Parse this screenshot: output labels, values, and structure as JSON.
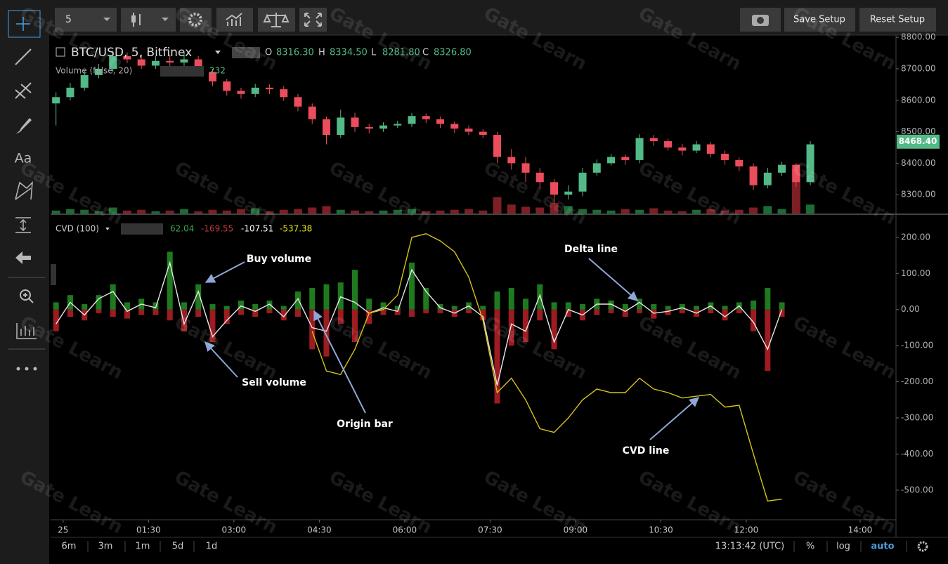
{
  "toolbar": {
    "interval": "5",
    "save": "Save Setup",
    "reset": "Reset Setup",
    "text_tool": "Aa"
  },
  "bottom_bar": {
    "ranges": [
      "6m",
      "3m",
      "1m",
      "5d",
      "1d"
    ],
    "clock": "13:13:42 (UTC)",
    "percent": "%",
    "log": "log",
    "auto": "auto"
  },
  "watermark": "Gate Learn",
  "chart_data": [
    {
      "type": "candlestick",
      "title": "BTC/USD, 5, Bitfinex",
      "ohlc_legend": [
        {
          "label": "O",
          "value": "8316.30"
        },
        {
          "label": "H",
          "value": "8334.50"
        },
        {
          "label": "L",
          "value": "8281.80"
        },
        {
          "label": "C",
          "value": "8326.80"
        }
      ],
      "volume_legend": {
        "label": "Volume (false, 20)",
        "value": "232"
      },
      "x": [
        -0.125,
        0.125,
        0.375,
        0.625,
        0.875,
        1.125,
        1.375,
        1.625,
        1.875,
        2.125,
        2.375,
        2.625,
        2.875,
        3.125,
        3.375,
        3.625,
        3.875,
        4.125,
        4.375,
        4.625,
        4.875,
        5.125,
        5.375,
        5.625,
        5.875,
        6.125,
        6.375,
        6.625,
        6.875,
        7.125,
        7.375,
        7.625,
        7.875,
        8.125,
        8.375,
        8.625,
        8.875,
        9.125,
        9.375,
        9.625,
        9.875,
        10.125,
        10.375,
        10.625,
        10.875,
        11.125,
        11.375,
        11.625,
        11.875,
        12.125,
        12.375,
        12.625,
        12.875,
        13.125
      ],
      "open": [
        8590,
        8610,
        8640,
        8680,
        8700,
        8740,
        8730,
        8710,
        8725,
        8720,
        8730,
        8690,
        8660,
        8630,
        8620,
        8640,
        8635,
        8610,
        8580,
        8540,
        8490,
        8545,
        8515,
        8510,
        8520,
        8525,
        8550,
        8540,
        8525,
        8510,
        8500,
        8490,
        8420,
        8400,
        8370,
        8340,
        8300,
        8310,
        8370,
        8400,
        8420,
        8410,
        8480,
        8470,
        8450,
        8440,
        8460,
        8430,
        8410,
        8390,
        8330,
        8370,
        8395,
        8340
      ],
      "high": [
        8625,
        8655,
        8695,
        8715,
        8758,
        8752,
        8745,
        8740,
        8745,
        8750,
        8740,
        8700,
        8668,
        8640,
        8652,
        8650,
        8645,
        8620,
        8590,
        8548,
        8570,
        8560,
        8525,
        8530,
        8535,
        8560,
        8558,
        8548,
        8532,
        8520,
        8508,
        8500,
        8445,
        8420,
        8385,
        8350,
        8330,
        8385,
        8412,
        8430,
        8428,
        8492,
        8490,
        8478,
        8462,
        8470,
        8468,
        8440,
        8418,
        8400,
        8385,
        8405,
        8400,
        8470
      ],
      "low": [
        8520,
        8600,
        8630,
        8670,
        8690,
        8718,
        8700,
        8700,
        8705,
        8708,
        8676,
        8645,
        8615,
        8605,
        8610,
        8620,
        8598,
        8565,
        8525,
        8460,
        8480,
        8500,
        8495,
        8500,
        8512,
        8515,
        8528,
        8512,
        8496,
        8490,
        8480,
        8400,
        8380,
        8340,
        8320,
        8270,
        8285,
        8295,
        8360,
        8392,
        8395,
        8400,
        8455,
        8440,
        8425,
        8432,
        8418,
        8395,
        8375,
        8315,
        8320,
        8360,
        8325,
        8330
      ],
      "close": [
        8610,
        8640,
        8680,
        8700,
        8740,
        8730,
        8710,
        8725,
        8720,
        8730,
        8690,
        8660,
        8630,
        8620,
        8640,
        8635,
        8610,
        8580,
        8540,
        8490,
        8545,
        8515,
        8510,
        8520,
        8525,
        8550,
        8540,
        8525,
        8510,
        8500,
        8490,
        8420,
        8400,
        8370,
        8340,
        8300,
        8310,
        8370,
        8400,
        8420,
        8410,
        8480,
        8470,
        8450,
        8440,
        8460,
        8430,
        8410,
        8390,
        8330,
        8370,
        8395,
        8340,
        8460
      ],
      "volume": [
        4,
        6,
        5,
        3,
        8,
        4,
        5,
        3,
        4,
        6,
        3,
        5,
        4,
        6,
        7,
        3,
        5,
        6,
        8,
        10,
        5,
        4,
        3,
        4,
        5,
        6,
        3,
        4,
        5,
        6,
        4,
        22,
        12,
        9,
        8,
        14,
        10,
        6,
        5,
        4,
        6,
        5,
        7,
        4,
        3,
        5,
        6,
        4,
        5,
        8,
        10,
        6,
        60,
        12
      ],
      "up_color": "#53b987",
      "down_color": "#eb4d5c",
      "volume_up_color": "#1d6b35",
      "volume_down_color": "#7d1f24",
      "xlim": [
        -0.22,
        14.63
      ],
      "ylim": [
        8238,
        8807
      ],
      "yticks": [
        {
          "value": 8300,
          "label": "8300.00"
        },
        {
          "value": 8400,
          "label": "8400.00"
        },
        {
          "value": 8500,
          "label": "8500.00"
        },
        {
          "value": 8600,
          "label": "8600.00"
        },
        {
          "value": 8700,
          "label": "8700.00"
        },
        {
          "value": 8800,
          "label": "8800.00"
        }
      ],
      "last_price": {
        "value": 8468.4,
        "label": "8468.40"
      }
    },
    {
      "type": "cvd",
      "legend": {
        "label": "CVD (100)",
        "values": [
          {
            "value": "62.04",
            "color": "#3fa34d"
          },
          {
            "value": "-169.55",
            "color": "#c23b3b"
          },
          {
            "value": "-107.51",
            "color": "#ffffff"
          },
          {
            "value": "-537.38",
            "color": "#e6e619"
          }
        ]
      },
      "x": [
        -0.125,
        0.125,
        0.375,
        0.625,
        0.875,
        1.125,
        1.375,
        1.625,
        1.875,
        2.125,
        2.375,
        2.625,
        2.875,
        3.125,
        3.375,
        3.625,
        3.875,
        4.125,
        4.375,
        4.625,
        4.875,
        5.125,
        5.375,
        5.625,
        5.875,
        6.125,
        6.375,
        6.625,
        6.875,
        7.125,
        7.375,
        7.625,
        7.875,
        8.125,
        8.375,
        8.625,
        8.875,
        9.125,
        9.375,
        9.625,
        9.875,
        10.125,
        10.375,
        10.625,
        10.875,
        11.125,
        11.375,
        11.625,
        11.875,
        12.125,
        12.375,
        12.625
      ],
      "series": [
        {
          "name": "Buy volume",
          "type": "bar",
          "color": "#1f7a1f",
          "values": [
            20,
            40,
            15,
            40,
            70,
            20,
            30,
            20,
            160,
            20,
            70,
            15,
            10,
            25,
            15,
            25,
            10,
            50,
            60,
            70,
            75,
            110,
            30,
            20,
            10,
            130,
            60,
            15,
            10,
            20,
            10,
            50,
            60,
            30,
            70,
            20,
            20,
            15,
            30,
            25,
            15,
            30,
            15,
            10,
            15,
            10,
            20,
            10,
            20,
            25,
            60,
            20
          ]
        },
        {
          "name": "Sell volume",
          "type": "bar",
          "color": "#9c1c22",
          "values": [
            -60,
            -20,
            -30,
            -10,
            -20,
            -25,
            -15,
            -15,
            -30,
            -60,
            -20,
            -90,
            -40,
            -15,
            -20,
            -10,
            -30,
            -20,
            -110,
            -130,
            -40,
            -90,
            -40,
            -15,
            -15,
            -20,
            -10,
            -10,
            -20,
            -10,
            -30,
            -260,
            -100,
            -90,
            -30,
            -110,
            -20,
            -30,
            -15,
            -10,
            -20,
            -10,
            -25,
            -15,
            -10,
            -20,
            -10,
            -30,
            -10,
            -60,
            -170,
            -20
          ]
        },
        {
          "name": "Delta line",
          "type": "line",
          "color": "#e8e8e8",
          "values": [
            -40,
            20,
            -15,
            30,
            50,
            -5,
            15,
            5,
            130,
            -40,
            50,
            -75,
            -30,
            10,
            -5,
            15,
            -20,
            30,
            -50,
            -60,
            35,
            20,
            -10,
            5,
            -5,
            110,
            50,
            5,
            -10,
            10,
            -20,
            -210,
            -40,
            -60,
            40,
            -90,
            0,
            -15,
            15,
            15,
            -5,
            20,
            -10,
            -5,
            5,
            -10,
            10,
            -20,
            10,
            -35,
            -110,
            0
          ]
        },
        {
          "name": "CVD line",
          "type": "line",
          "color": "#d6c21a",
          "values": [
            null,
            null,
            null,
            null,
            null,
            null,
            null,
            null,
            null,
            null,
            null,
            null,
            null,
            null,
            null,
            null,
            null,
            null,
            -60,
            -170,
            -180,
            -110,
            -10,
            0,
            40,
            200,
            210,
            190,
            160,
            90,
            -30,
            -230,
            -190,
            -250,
            -330,
            -340,
            -300,
            -250,
            -220,
            -230,
            -230,
            -190,
            -220,
            -230,
            -245,
            -240,
            -235,
            -270,
            -265,
            -400,
            -530,
            -525
          ]
        }
      ],
      "annotations": [
        {
          "text": "Origin bar"
        }
      ],
      "xlim": [
        -0.22,
        14.63
      ],
      "ylim": [
        -582,
        264
      ],
      "yticks": [
        {
          "value": 200,
          "label": "200.00"
        },
        {
          "value": 100,
          "label": "100.00"
        },
        {
          "value": 0,
          "label": "0.00"
        },
        {
          "value": -100,
          "label": "-100.00"
        },
        {
          "value": -200,
          "label": "-200.00"
        },
        {
          "value": -300,
          "label": "-300.00"
        },
        {
          "value": -400,
          "label": "-400.00"
        },
        {
          "value": -500,
          "label": "-500.00"
        }
      ],
      "xticks": [
        {
          "value": 0,
          "label": "25"
        },
        {
          "value": 1.5,
          "label": "01:30"
        },
        {
          "value": 3,
          "label": "03:00"
        },
        {
          "value": 4.5,
          "label": "04:30"
        },
        {
          "value": 6,
          "label": "06:00"
        },
        {
          "value": 7.5,
          "label": "07:30"
        },
        {
          "value": 9,
          "label": "09:00"
        },
        {
          "value": 10.5,
          "label": "10:30"
        },
        {
          "value": 12,
          "label": "12:00"
        },
        {
          "value": 14,
          "label": "14:00"
        }
      ]
    }
  ]
}
